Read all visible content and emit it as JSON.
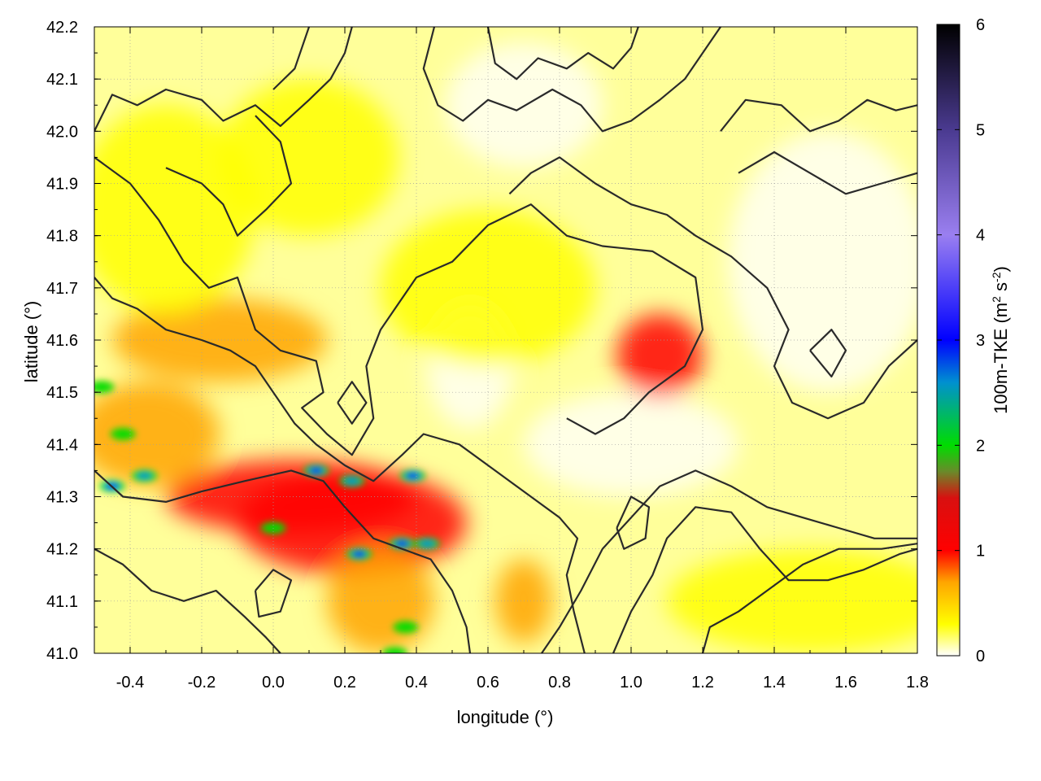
{
  "chart_data": {
    "type": "heatmap",
    "title": "",
    "xlabel": "longitude (°)",
    "ylabel": "latitude (°)",
    "colorbar_label": "100m-TKE (m² s⁻²)",
    "colorbar_label_parts": {
      "base": "100m-TKE (m",
      "sup1": "2",
      "mid": " s",
      "sup2": "-2",
      "end": ")"
    },
    "xlim": [
      -0.5,
      1.8
    ],
    "ylim": [
      41.0,
      42.2
    ],
    "clim": [
      0,
      6
    ],
    "x_ticks": [
      -0.4,
      -0.2,
      0.0,
      0.2,
      0.4,
      0.6,
      0.8,
      1.0,
      1.2,
      1.4,
      1.6,
      1.8
    ],
    "x_tick_labels": [
      "-0.4",
      "-0.2",
      "0.0",
      "0.2",
      "0.4",
      "0.6",
      "0.8",
      "1.0",
      "1.2",
      "1.4",
      "1.6",
      "1.8"
    ],
    "y_ticks": [
      41.0,
      41.1,
      41.2,
      41.3,
      41.4,
      41.5,
      41.6,
      41.7,
      41.8,
      41.9,
      42.0,
      42.1,
      42.2
    ],
    "y_tick_labels": [
      "41.0",
      "41.1",
      "41.2",
      "41.3",
      "41.4",
      "41.5",
      "41.6",
      "41.7",
      "41.8",
      "41.9",
      "42.0",
      "42.1",
      "42.2"
    ],
    "colorbar_ticks": [
      0,
      1,
      2,
      3,
      4,
      5,
      6
    ],
    "colorbar_tick_labels": [
      "0",
      "1",
      "2",
      "3",
      "4",
      "5",
      "6"
    ],
    "grid": true,
    "colormap": [
      {
        "v": 0.0,
        "color": "#ffffff"
      },
      {
        "v": 0.3,
        "color": "#ffff00"
      },
      {
        "v": 0.7,
        "color": "#ffa500"
      },
      {
        "v": 1.0,
        "color": "#ff0000"
      },
      {
        "v": 1.5,
        "color": "#d81010"
      },
      {
        "v": 1.75,
        "color": "#6a8a2a"
      },
      {
        "v": 2.0,
        "color": "#00dd00"
      },
      {
        "v": 2.6,
        "color": "#0090d0"
      },
      {
        "v": 3.0,
        "color": "#0000ff"
      },
      {
        "v": 4.0,
        "color": "#9a7ff0"
      },
      {
        "v": 5.0,
        "color": "#4a3a90"
      },
      {
        "v": 6.0,
        "color": "#000000"
      }
    ],
    "hotspots": [
      {
        "lon": 0.22,
        "lat": 41.25,
        "value": 1.3,
        "rx": 0.32,
        "ry": 0.1
      },
      {
        "lon": 0.05,
        "lat": 41.3,
        "value": 1.0,
        "rx": 0.35,
        "ry": 0.07
      },
      {
        "lon": -0.35,
        "lat": 41.42,
        "value": 0.9,
        "rx": 0.2,
        "ry": 0.1
      },
      {
        "lon": -0.15,
        "lat": 41.6,
        "value": 0.7,
        "rx": 0.3,
        "ry": 0.08
      },
      {
        "lon": 0.3,
        "lat": 41.1,
        "value": 0.9,
        "rx": 0.15,
        "ry": 0.1
      },
      {
        "lon": 1.08,
        "lat": 41.57,
        "value": 1.0,
        "rx": 0.12,
        "ry": 0.08
      },
      {
        "lon": 0.7,
        "lat": 41.1,
        "value": 0.7,
        "rx": 0.08,
        "ry": 0.08
      },
      {
        "lon": 0.1,
        "lat": 41.95,
        "value": 0.55,
        "rx": 0.25,
        "ry": 0.15
      },
      {
        "lon": -0.3,
        "lat": 41.85,
        "value": 0.45,
        "rx": 0.25,
        "ry": 0.2
      },
      {
        "lon": 0.6,
        "lat": 41.7,
        "value": 0.4,
        "rx": 0.3,
        "ry": 0.15
      },
      {
        "lon": 1.5,
        "lat": 41.1,
        "value": 0.35,
        "rx": 0.4,
        "ry": 0.1
      }
    ],
    "peaks": [
      {
        "lon": 0.24,
        "lat": 41.19,
        "value": 3.5
      },
      {
        "lon": 0.36,
        "lat": 41.21,
        "value": 3.0
      },
      {
        "lon": 0.43,
        "lat": 41.21,
        "value": 2.6
      },
      {
        "lon": 0.12,
        "lat": 41.35,
        "value": 3.6
      },
      {
        "lon": -0.45,
        "lat": 41.32,
        "value": 3.2
      },
      {
        "lon": -0.36,
        "lat": 41.34,
        "value": 2.8
      },
      {
        "lon": -0.42,
        "lat": 41.42,
        "value": 2.4
      },
      {
        "lon": -0.48,
        "lat": 41.51,
        "value": 2.5
      },
      {
        "lon": 0.39,
        "lat": 41.34,
        "value": 3.4
      },
      {
        "lon": 0.0,
        "lat": 41.24,
        "value": 2.5
      },
      {
        "lon": 0.22,
        "lat": 41.33,
        "value": 2.7
      },
      {
        "lon": 0.37,
        "lat": 41.05,
        "value": 2.1
      },
      {
        "lon": 0.34,
        "lat": 41.0,
        "value": 2.0
      }
    ],
    "contours": [
      [
        [
          -0.5,
          42.0
        ],
        [
          -0.45,
          42.07
        ],
        [
          -0.38,
          42.05
        ],
        [
          -0.3,
          42.08
        ],
        [
          -0.2,
          42.06
        ],
        [
          -0.14,
          42.02
        ],
        [
          -0.05,
          42.05
        ],
        [
          0.02,
          42.01
        ],
        [
          0.1,
          42.06
        ],
        [
          0.16,
          42.1
        ],
        [
          0.2,
          42.15
        ],
        [
          0.22,
          42.2
        ]
      ],
      [
        [
          -0.3,
          41.93
        ],
        [
          -0.2,
          41.9
        ],
        [
          -0.14,
          41.86
        ],
        [
          -0.1,
          41.8
        ],
        [
          -0.02,
          41.85
        ],
        [
          0.05,
          41.9
        ],
        [
          0.02,
          41.98
        ],
        [
          -0.05,
          42.03
        ]
      ],
      [
        [
          -0.5,
          41.95
        ],
        [
          -0.4,
          41.9
        ],
        [
          -0.32,
          41.83
        ],
        [
          -0.25,
          41.75
        ],
        [
          -0.18,
          41.7
        ],
        [
          -0.1,
          41.72
        ],
        [
          -0.05,
          41.62
        ],
        [
          0.02,
          41.58
        ],
        [
          0.12,
          41.56
        ],
        [
          0.14,
          41.5
        ],
        [
          0.08,
          41.47
        ],
        [
          0.15,
          41.42
        ],
        [
          0.22,
          41.38
        ],
        [
          0.28,
          41.45
        ],
        [
          0.26,
          41.55
        ],
        [
          0.3,
          41.62
        ],
        [
          0.4,
          41.72
        ],
        [
          0.5,
          41.75
        ],
        [
          0.6,
          41.82
        ],
        [
          0.72,
          41.86
        ],
        [
          0.82,
          41.8
        ],
        [
          0.92,
          41.78
        ],
        [
          1.06,
          41.77
        ],
        [
          1.18,
          41.72
        ],
        [
          1.2,
          41.62
        ],
        [
          1.15,
          41.55
        ],
        [
          1.05,
          41.5
        ],
        [
          0.98,
          41.45
        ],
        [
          0.9,
          41.42
        ],
        [
          0.82,
          41.45
        ]
      ],
      [
        [
          -0.5,
          41.72
        ],
        [
          -0.45,
          41.68
        ],
        [
          -0.38,
          41.66
        ],
        [
          -0.3,
          41.62
        ],
        [
          -0.2,
          41.6
        ],
        [
          -0.12,
          41.58
        ],
        [
          -0.05,
          41.55
        ],
        [
          0.0,
          41.5
        ],
        [
          0.06,
          41.44
        ],
        [
          0.12,
          41.4
        ],
        [
          0.2,
          41.36
        ],
        [
          0.28,
          41.33
        ],
        [
          0.36,
          41.38
        ],
        [
          0.42,
          41.42
        ],
        [
          0.52,
          41.4
        ],
        [
          0.62,
          41.35
        ],
        [
          0.72,
          41.3
        ],
        [
          0.8,
          41.26
        ],
        [
          0.85,
          41.22
        ],
        [
          0.82,
          41.15
        ],
        [
          0.84,
          41.08
        ],
        [
          0.87,
          41.0
        ]
      ],
      [
        [
          -0.5,
          41.35
        ],
        [
          -0.42,
          41.3
        ],
        [
          -0.3,
          41.29
        ],
        [
          -0.2,
          41.31
        ],
        [
          -0.08,
          41.33
        ],
        [
          0.05,
          41.35
        ],
        [
          0.14,
          41.33
        ],
        [
          0.2,
          41.28
        ],
        [
          0.28,
          41.22
        ],
        [
          0.36,
          41.2
        ],
        [
          0.44,
          41.18
        ],
        [
          0.5,
          41.12
        ],
        [
          0.54,
          41.05
        ],
        [
          0.55,
          41.0
        ]
      ],
      [
        [
          -0.5,
          41.2
        ],
        [
          -0.42,
          41.17
        ],
        [
          -0.34,
          41.12
        ],
        [
          -0.25,
          41.1
        ],
        [
          -0.16,
          41.12
        ],
        [
          -0.08,
          41.07
        ],
        [
          -0.02,
          41.03
        ],
        [
          0.02,
          41.0
        ]
      ],
      [
        [
          0.75,
          41.0
        ],
        [
          0.8,
          41.05
        ],
        [
          0.86,
          41.12
        ],
        [
          0.92,
          41.2
        ],
        [
          1.0,
          41.26
        ],
        [
          1.08,
          41.32
        ],
        [
          1.18,
          41.35
        ],
        [
          1.28,
          41.32
        ],
        [
          1.38,
          41.28
        ],
        [
          1.48,
          41.26
        ],
        [
          1.58,
          41.24
        ],
        [
          1.68,
          41.22
        ],
        [
          1.8,
          41.22
        ]
      ],
      [
        [
          0.95,
          41.0
        ],
        [
          1.0,
          41.08
        ],
        [
          1.06,
          41.15
        ],
        [
          1.1,
          41.22
        ],
        [
          1.18,
          41.28
        ],
        [
          1.28,
          41.27
        ],
        [
          1.36,
          41.2
        ],
        [
          1.44,
          41.14
        ],
        [
          1.55,
          41.14
        ],
        [
          1.65,
          41.16
        ],
        [
          1.75,
          41.19
        ],
        [
          1.8,
          41.2
        ]
      ],
      [
        [
          0.45,
          42.2
        ],
        [
          0.42,
          42.12
        ],
        [
          0.46,
          42.05
        ],
        [
          0.53,
          42.02
        ],
        [
          0.6,
          42.06
        ],
        [
          0.68,
          42.04
        ],
        [
          0.78,
          42.08
        ],
        [
          0.86,
          42.05
        ],
        [
          0.92,
          42.0
        ],
        [
          1.0,
          42.02
        ],
        [
          1.08,
          42.06
        ],
        [
          1.15,
          42.1
        ],
        [
          1.2,
          42.15
        ],
        [
          1.25,
          42.2
        ]
      ],
      [
        [
          0.6,
          42.2
        ],
        [
          0.62,
          42.13
        ],
        [
          0.68,
          42.1
        ],
        [
          0.74,
          42.14
        ],
        [
          0.82,
          42.12
        ],
        [
          0.88,
          42.15
        ],
        [
          0.95,
          42.12
        ],
        [
          1.0,
          42.16
        ],
        [
          1.02,
          42.2
        ]
      ],
      [
        [
          0.66,
          41.88
        ],
        [
          0.72,
          41.92
        ],
        [
          0.8,
          41.95
        ],
        [
          0.9,
          41.9
        ],
        [
          1.0,
          41.86
        ],
        [
          1.1,
          41.84
        ],
        [
          1.18,
          41.8
        ],
        [
          1.28,
          41.76
        ],
        [
          1.38,
          41.7
        ],
        [
          1.44,
          41.62
        ],
        [
          1.4,
          41.55
        ],
        [
          1.45,
          41.48
        ],
        [
          1.55,
          41.45
        ],
        [
          1.65,
          41.48
        ],
        [
          1.72,
          41.55
        ],
        [
          1.8,
          41.6
        ]
      ],
      [
        [
          1.25,
          42.0
        ],
        [
          1.32,
          42.06
        ],
        [
          1.42,
          42.05
        ],
        [
          1.5,
          42.0
        ],
        [
          1.58,
          42.02
        ],
        [
          1.66,
          42.06
        ],
        [
          1.74,
          42.04
        ],
        [
          1.8,
          42.05
        ]
      ],
      [
        [
          1.3,
          41.92
        ],
        [
          1.4,
          41.96
        ],
        [
          1.5,
          41.92
        ],
        [
          1.6,
          41.88
        ],
        [
          1.7,
          41.9
        ],
        [
          1.8,
          41.92
        ]
      ],
      [
        [
          1.2,
          41.0
        ],
        [
          1.22,
          41.05
        ],
        [
          1.3,
          41.08
        ],
        [
          1.38,
          41.12
        ],
        [
          1.48,
          41.17
        ],
        [
          1.58,
          41.2
        ],
        [
          1.7,
          41.2
        ],
        [
          1.8,
          41.21
        ]
      ],
      [
        [
          0.1,
          42.2
        ],
        [
          0.06,
          42.12
        ],
        [
          0.0,
          42.08
        ]
      ],
      [
        [
          -0.05,
          41.12
        ],
        [
          0.0,
          41.16
        ],
        [
          0.05,
          41.14
        ],
        [
          0.02,
          41.08
        ],
        [
          -0.04,
          41.07
        ],
        [
          -0.05,
          41.12
        ]
      ],
      [
        [
          0.18,
          41.48
        ],
        [
          0.22,
          41.52
        ],
        [
          0.26,
          41.48
        ],
        [
          0.22,
          41.44
        ],
        [
          0.18,
          41.48
        ]
      ],
      [
        [
          0.96,
          41.24
        ],
        [
          1.0,
          41.3
        ],
        [
          1.05,
          41.28
        ],
        [
          1.04,
          41.22
        ],
        [
          0.98,
          41.2
        ],
        [
          0.96,
          41.24
        ]
      ],
      [
        [
          1.5,
          41.58
        ],
        [
          1.56,
          41.62
        ],
        [
          1.6,
          41.58
        ],
        [
          1.56,
          41.53
        ],
        [
          1.5,
          41.58
        ]
      ]
    ]
  }
}
